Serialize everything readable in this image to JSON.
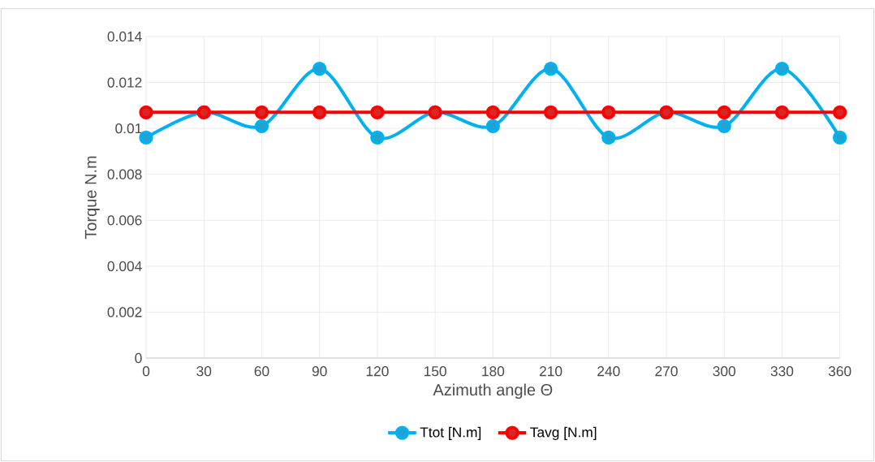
{
  "chart_data": {
    "type": "line",
    "xlabel": "Azimuth angle Θ",
    "ylabel": "Torque N.m",
    "x": [
      0,
      30,
      60,
      90,
      120,
      150,
      180,
      210,
      240,
      270,
      300,
      330,
      360
    ],
    "series": [
      {
        "name": "Ttot [N.m]",
        "color": "#00b0f0",
        "values": [
          0.0096,
          0.0107,
          0.0101,
          0.0126,
          0.0096,
          0.0107,
          0.0101,
          0.0126,
          0.0096,
          0.0107,
          0.0101,
          0.0126,
          0.0096
        ]
      },
      {
        "name": "Tavg [N.m]",
        "color": "#ff0000",
        "values": [
          0.0107,
          0.0107,
          0.0107,
          0.0107,
          0.0107,
          0.0107,
          0.0107,
          0.0107,
          0.0107,
          0.0107,
          0.0107,
          0.0107,
          0.0107
        ]
      }
    ],
    "xlim": [
      0,
      360
    ],
    "xticks": [
      0,
      30,
      60,
      90,
      120,
      150,
      180,
      210,
      240,
      270,
      300,
      330,
      360
    ],
    "ylim": [
      0,
      0.014
    ],
    "yticks": [
      0,
      0.002,
      0.004,
      0.006,
      0.008,
      0.01,
      0.012,
      0.014
    ],
    "grid": true,
    "legend": "bottom",
    "marker": "circle",
    "line_style": "solid"
  }
}
